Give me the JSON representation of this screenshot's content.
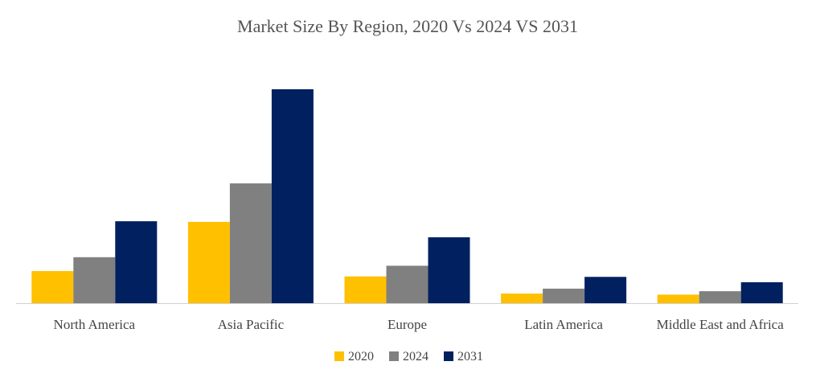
{
  "chart_data": {
    "type": "bar",
    "title": "Market Size By Region, 2020 Vs 2024 VS 2031",
    "xlabel": "",
    "ylabel": "",
    "grid": false,
    "legend_position": "bottom",
    "categories": [
      "North America",
      "Asia Pacific",
      "Europe",
      "Latin America",
      "Middle East and Africa"
    ],
    "ylim": [
      0,
      100
    ],
    "series": [
      {
        "name": "2020",
        "color": "#FFC000",
        "values": [
          15,
          38,
          12.5,
          4.5,
          4
        ]
      },
      {
        "name": "2024",
        "color": "#808080",
        "values": [
          21.5,
          56,
          17.5,
          6.8,
          5.6
        ]
      },
      {
        "name": "2031",
        "color": "#002060",
        "values": [
          38.3,
          100,
          30.8,
          12.3,
          9.8
        ]
      }
    ]
  }
}
